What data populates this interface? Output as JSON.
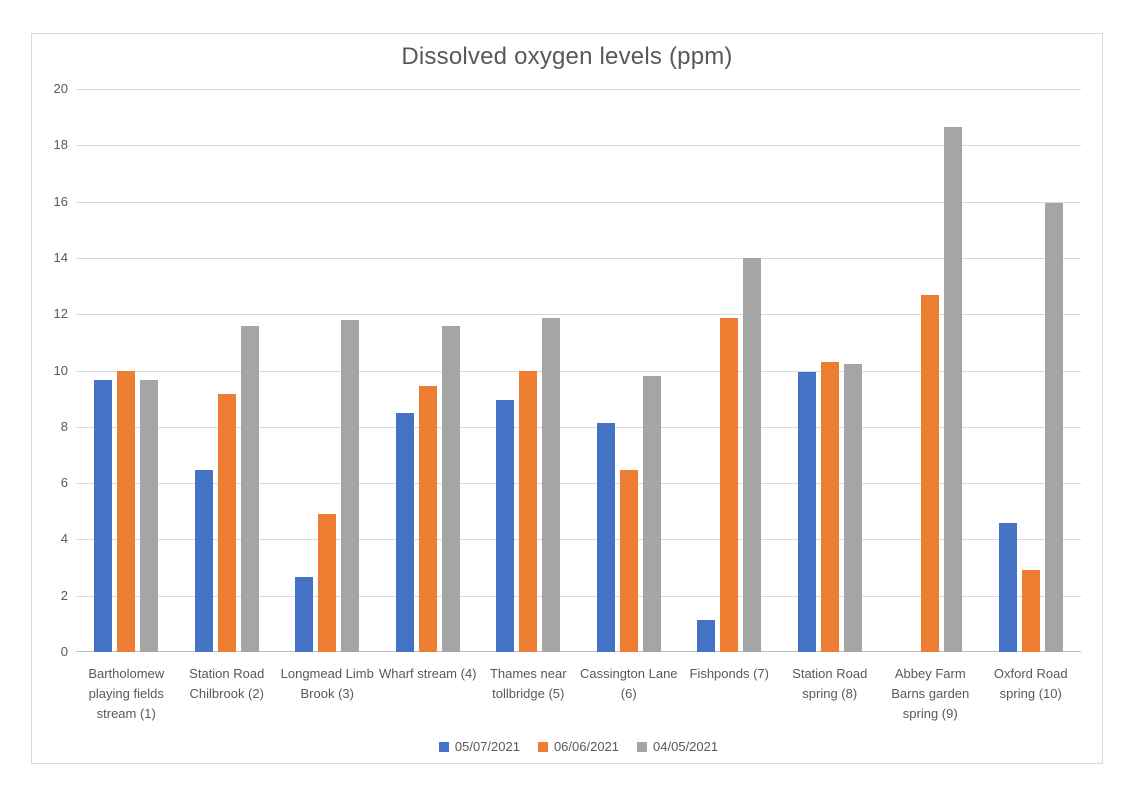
{
  "chart_data": {
    "type": "bar",
    "title": "Dissolved oxygen levels (ppm)",
    "categories": [
      "Bartholomew playing fields stream (1)",
      "Station Road Chilbrook (2)",
      "Longmead Limb Brook (3)",
      "Wharf stream (4)",
      "Thames near tollbridge (5)",
      "Cassington Lane (6)",
      "Fishponds (7)",
      "Station Road spring (8)",
      "Abbey Farm Barns garden spring (9)",
      "Oxford Road spring (10)"
    ],
    "series": [
      {
        "name": "05/07/2021",
        "color": "#4472C4",
        "values": [
          9.68,
          6.45,
          2.65,
          8.5,
          8.95,
          8.15,
          1.15,
          9.95,
          0,
          4.57
        ]
      },
      {
        "name": "06/06/2021",
        "color": "#ED7D31",
        "values": [
          10.0,
          9.15,
          4.9,
          9.45,
          10.0,
          6.45,
          11.85,
          10.3,
          12.7,
          2.9
        ]
      },
      {
        "name": "04/05/2021",
        "color": "#A5A5A5",
        "values": [
          9.65,
          11.6,
          11.8,
          11.6,
          11.85,
          9.8,
          14.0,
          10.25,
          18.65,
          15.95
        ]
      }
    ],
    "xlabel": "",
    "ylabel": "",
    "ylim": [
      0,
      20
    ],
    "ytick_step": 2,
    "grid": true,
    "legend_position": "bottom",
    "colors": {
      "text": "#595959",
      "gridline": "#D9D9D9",
      "axis_line": "#BFBFBF",
      "border": "#D9D9D9",
      "background": "#FFFFFF"
    }
  }
}
